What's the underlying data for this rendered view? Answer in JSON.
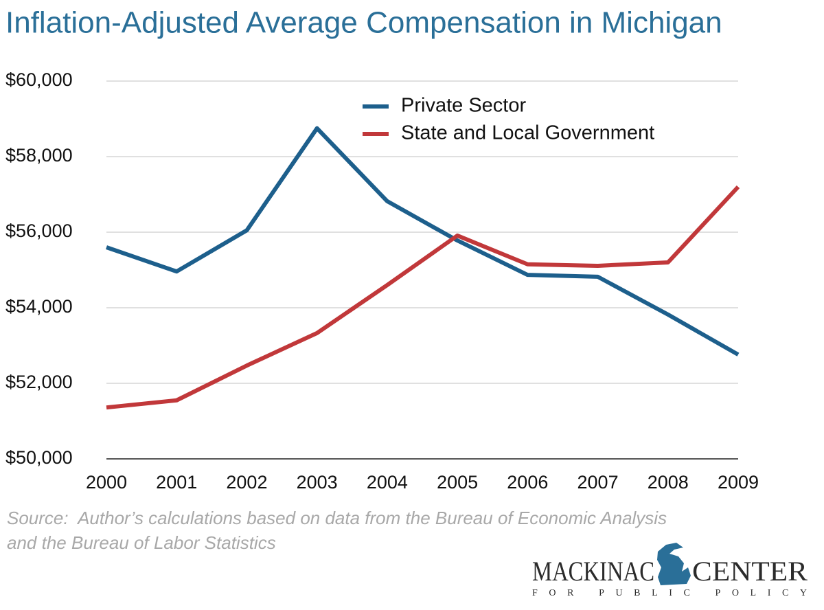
{
  "chart_data": {
    "type": "line",
    "title": "Inflation-Adjusted Average Compensation in Michigan",
    "categories": [
      "2000",
      "2001",
      "2002",
      "2003",
      "2004",
      "2005",
      "2006",
      "2007",
      "2008",
      "2009"
    ],
    "series": [
      {
        "name": "Private Sector",
        "color": "#1d5f8c",
        "values": [
          55600,
          54960,
          56050,
          58750,
          56820,
          55780,
          54870,
          54820,
          53820,
          52760
        ]
      },
      {
        "name": "State and Local Government",
        "color": "#c1383a",
        "values": [
          51360,
          51550,
          52470,
          53330,
          54600,
          55910,
          55150,
          55110,
          55200,
          57200
        ]
      }
    ],
    "ylim": [
      50000,
      60000
    ],
    "yticks": [
      {
        "value": 50000,
        "label": "$50,000"
      },
      {
        "value": 52000,
        "label": "$52,000"
      },
      {
        "value": 54000,
        "label": "$54,000"
      },
      {
        "value": 56000,
        "label": "$56,000"
      },
      {
        "value": 58000,
        "label": "$58,000"
      },
      {
        "value": 60000,
        "label": "$60,000"
      }
    ],
    "grid": true,
    "legend": "upper center",
    "source": [
      "Source:  Author’s calculations based on data from the Bureau of Economic Analysis",
      "and the Bureau of Labor Statistics"
    ],
    "logo": {
      "left": "MACKINAC",
      "right": "CENTER",
      "tagline": "FOR PUBLIC POLICY"
    }
  }
}
